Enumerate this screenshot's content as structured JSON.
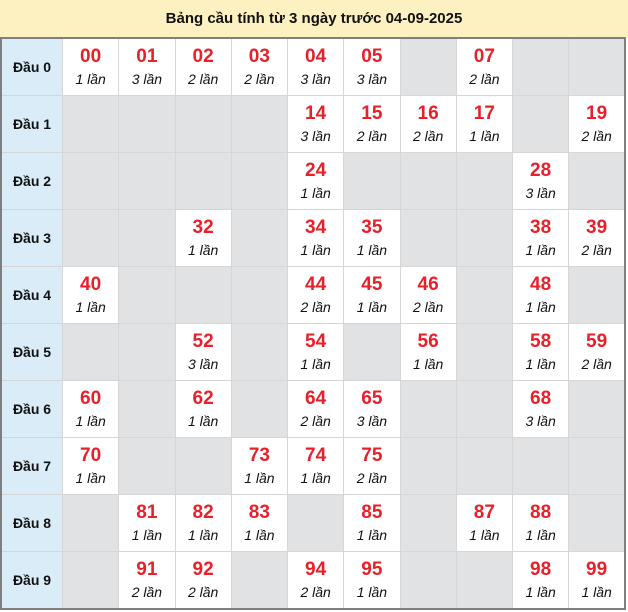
{
  "title": "Bảng cầu tính từ 3 ngày trước 04-09-2025",
  "colors": {
    "number": "#e8202a",
    "header_bg": "#fdf0c1",
    "row_label_bg": "#d9ecf7",
    "empty_cell_bg": "#e1e2e4"
  },
  "rows": [
    {
      "label": "Đầu 0",
      "cells": [
        {
          "num": "00",
          "count": "1 lần"
        },
        {
          "num": "01",
          "count": "3 lần"
        },
        {
          "num": "02",
          "count": "2 lần"
        },
        {
          "num": "03",
          "count": "2 lần"
        },
        {
          "num": "04",
          "count": "3 lần"
        },
        {
          "num": "05",
          "count": "3 lần"
        },
        null,
        {
          "num": "07",
          "count": "2 lần"
        },
        null,
        null
      ]
    },
    {
      "label": "Đầu 1",
      "cells": [
        null,
        null,
        null,
        null,
        {
          "num": "14",
          "count": "3 lần"
        },
        {
          "num": "15",
          "count": "2 lần"
        },
        {
          "num": "16",
          "count": "2 lần"
        },
        {
          "num": "17",
          "count": "1 lần"
        },
        null,
        {
          "num": "19",
          "count": "2 lần"
        }
      ]
    },
    {
      "label": "Đầu 2",
      "cells": [
        null,
        null,
        null,
        null,
        {
          "num": "24",
          "count": "1 lần"
        },
        null,
        null,
        null,
        {
          "num": "28",
          "count": "3 lần"
        },
        null
      ]
    },
    {
      "label": "Đầu 3",
      "cells": [
        null,
        null,
        {
          "num": "32",
          "count": "1 lần"
        },
        null,
        {
          "num": "34",
          "count": "1 lần"
        },
        {
          "num": "35",
          "count": "1 lần"
        },
        null,
        null,
        {
          "num": "38",
          "count": "1 lần"
        },
        {
          "num": "39",
          "count": "2 lần"
        }
      ]
    },
    {
      "label": "Đầu 4",
      "cells": [
        {
          "num": "40",
          "count": "1 lần"
        },
        null,
        null,
        null,
        {
          "num": "44",
          "count": "2 lần"
        },
        {
          "num": "45",
          "count": "1 lần"
        },
        {
          "num": "46",
          "count": "2 lần"
        },
        null,
        {
          "num": "48",
          "count": "1 lần"
        },
        null
      ]
    },
    {
      "label": "Đầu 5",
      "cells": [
        null,
        null,
        {
          "num": "52",
          "count": "3 lần"
        },
        null,
        {
          "num": "54",
          "count": "1 lần"
        },
        null,
        {
          "num": "56",
          "count": "1 lần"
        },
        null,
        {
          "num": "58",
          "count": "1 lần"
        },
        {
          "num": "59",
          "count": "2 lần"
        }
      ]
    },
    {
      "label": "Đầu 6",
      "cells": [
        {
          "num": "60",
          "count": "1 lần"
        },
        null,
        {
          "num": "62",
          "count": "1 lần"
        },
        null,
        {
          "num": "64",
          "count": "2 lần"
        },
        {
          "num": "65",
          "count": "3 lần"
        },
        null,
        null,
        {
          "num": "68",
          "count": "3 lần"
        },
        null
      ]
    },
    {
      "label": "Đầu 7",
      "cells": [
        {
          "num": "70",
          "count": "1 lần"
        },
        null,
        null,
        {
          "num": "73",
          "count": "1 lần"
        },
        {
          "num": "74",
          "count": "1 lần"
        },
        {
          "num": "75",
          "count": "2 lần"
        },
        null,
        null,
        null,
        null
      ]
    },
    {
      "label": "Đầu 8",
      "cells": [
        null,
        {
          "num": "81",
          "count": "1 lần"
        },
        {
          "num": "82",
          "count": "1 lần"
        },
        {
          "num": "83",
          "count": "1 lần"
        },
        null,
        {
          "num": "85",
          "count": "1 lần"
        },
        null,
        {
          "num": "87",
          "count": "1 lần"
        },
        {
          "num": "88",
          "count": "1 lần"
        },
        null
      ]
    },
    {
      "label": "Đầu 9",
      "cells": [
        null,
        {
          "num": "91",
          "count": "2 lần"
        },
        {
          "num": "92",
          "count": "2 lần"
        },
        null,
        {
          "num": "94",
          "count": "2 lần"
        },
        {
          "num": "95",
          "count": "1 lần"
        },
        null,
        null,
        {
          "num": "98",
          "count": "1 lần"
        },
        {
          "num": "99",
          "count": "1 lần"
        }
      ]
    }
  ]
}
